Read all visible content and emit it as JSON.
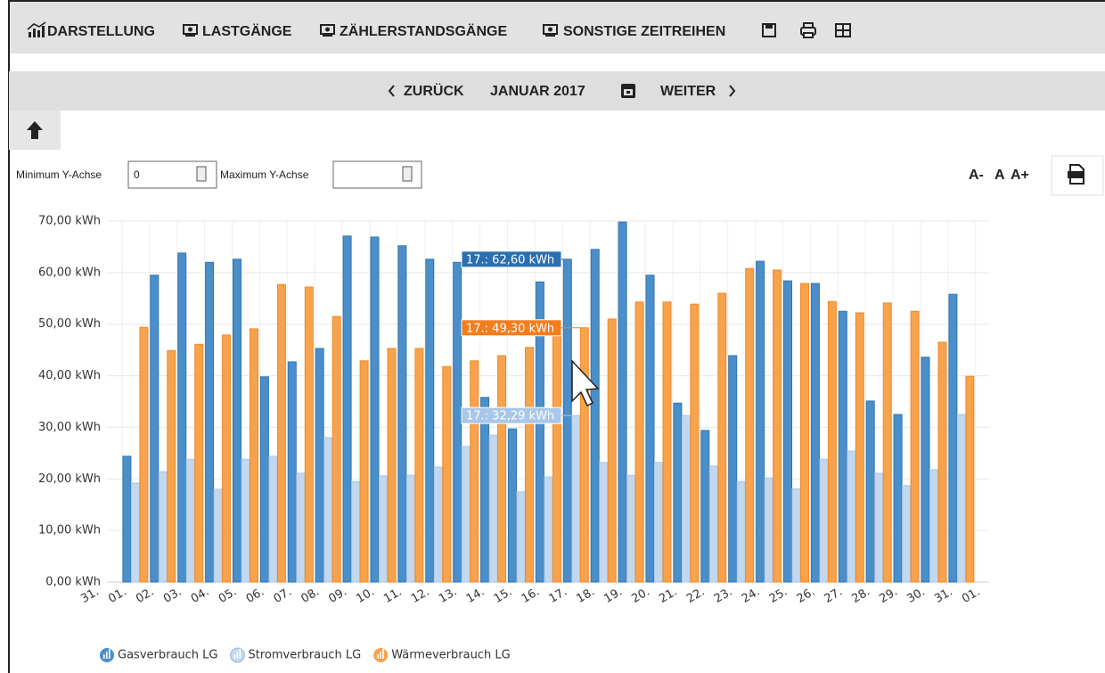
{
  "toolbar": {
    "items": [
      "DARSTELLUNG",
      "LASTGÄNGE",
      "ZÄHLERSTANDSGÄNGE",
      "SONSTIGE ZEITREIHEN"
    ]
  },
  "nav": {
    "prev": "ZURÜCK",
    "period": "JANUAR 2017",
    "next": "WEITER"
  },
  "controls": {
    "min_label": "Minimum Y-Achse",
    "min_value": "0",
    "max_label": "Maximum Y-Achse",
    "font_smaller": "A-",
    "font_normal": "A",
    "font_larger": "A+"
  },
  "chart_data": {
    "type": "bar",
    "categories": [
      "31.",
      "01.",
      "02.",
      "03.",
      "04.",
      "05.",
      "06.",
      "07.",
      "08.",
      "09.",
      "10.",
      "11.",
      "12.",
      "13.",
      "14.",
      "15.",
      "16.",
      "17.",
      "18.",
      "19.",
      "20.",
      "21.",
      "22.",
      "23.",
      "24.",
      "25.",
      "26.",
      "27.",
      "28.",
      "29.",
      "30.",
      "31.",
      "01."
    ],
    "series": [
      {
        "name": "Gasverbrauch LG",
        "color": "#4b8fca",
        "values": [
          null,
          24.4,
          59.5,
          63.8,
          62.0,
          62.6,
          39.8,
          42.7,
          45.3,
          67.1,
          66.9,
          65.2,
          62.6,
          62.0,
          35.8,
          29.7,
          58.2,
          62.6,
          64.5,
          69.8,
          59.5,
          34.7,
          29.4,
          43.9,
          62.2,
          58.4,
          57.9,
          52.5,
          35.1,
          32.5,
          43.6,
          55.8,
          null
        ]
      },
      {
        "name": "Stromverbrauch LG",
        "color": "#c3d8ef",
        "values": [
          null,
          19.2,
          21.4,
          23.8,
          18.0,
          23.8,
          24.4,
          21.1,
          28.0,
          19.5,
          20.6,
          20.7,
          22.3,
          26.3,
          28.5,
          17.5,
          20.4,
          32.29,
          23.2,
          20.7,
          23.2,
          32.3,
          22.5,
          19.5,
          20.2,
          18.1,
          23.8,
          25.4,
          21.1,
          18.7,
          21.8,
          32.5,
          null
        ]
      },
      {
        "name": "Wärmeverbrauch LG",
        "color": "#f7a24c",
        "values": [
          null,
          49.4,
          44.9,
          46.1,
          47.9,
          49.1,
          57.7,
          57.2,
          51.5,
          42.9,
          45.3,
          45.3,
          41.8,
          42.9,
          43.9,
          45.5,
          48.0,
          49.3,
          51.0,
          54.3,
          54.3,
          53.9,
          56.0,
          60.8,
          60.5,
          57.9,
          54.4,
          52.2,
          54.1,
          52.5,
          46.5,
          39.9,
          null
        ]
      }
    ],
    "ylim": [
      0,
      70
    ],
    "yticks": [
      {
        "value": 0,
        "label": "0,00 kWh"
      },
      {
        "value": 10,
        "label": "10,00 kWh"
      },
      {
        "value": 20,
        "label": "20,00 kWh"
      },
      {
        "value": 30,
        "label": "30,00 kWh"
      },
      {
        "value": 40,
        "label": "40,00 kWh"
      },
      {
        "value": 50,
        "label": "50,00 kWh"
      },
      {
        "value": 60,
        "label": "60,00 kWh"
      },
      {
        "value": 70,
        "label": "70,00 kWh"
      }
    ],
    "grid": true,
    "annotations": [
      "17.: 62,60 kWh",
      "17.: 49,30 kWh",
      "17.: 32,29 kWh"
    ]
  }
}
